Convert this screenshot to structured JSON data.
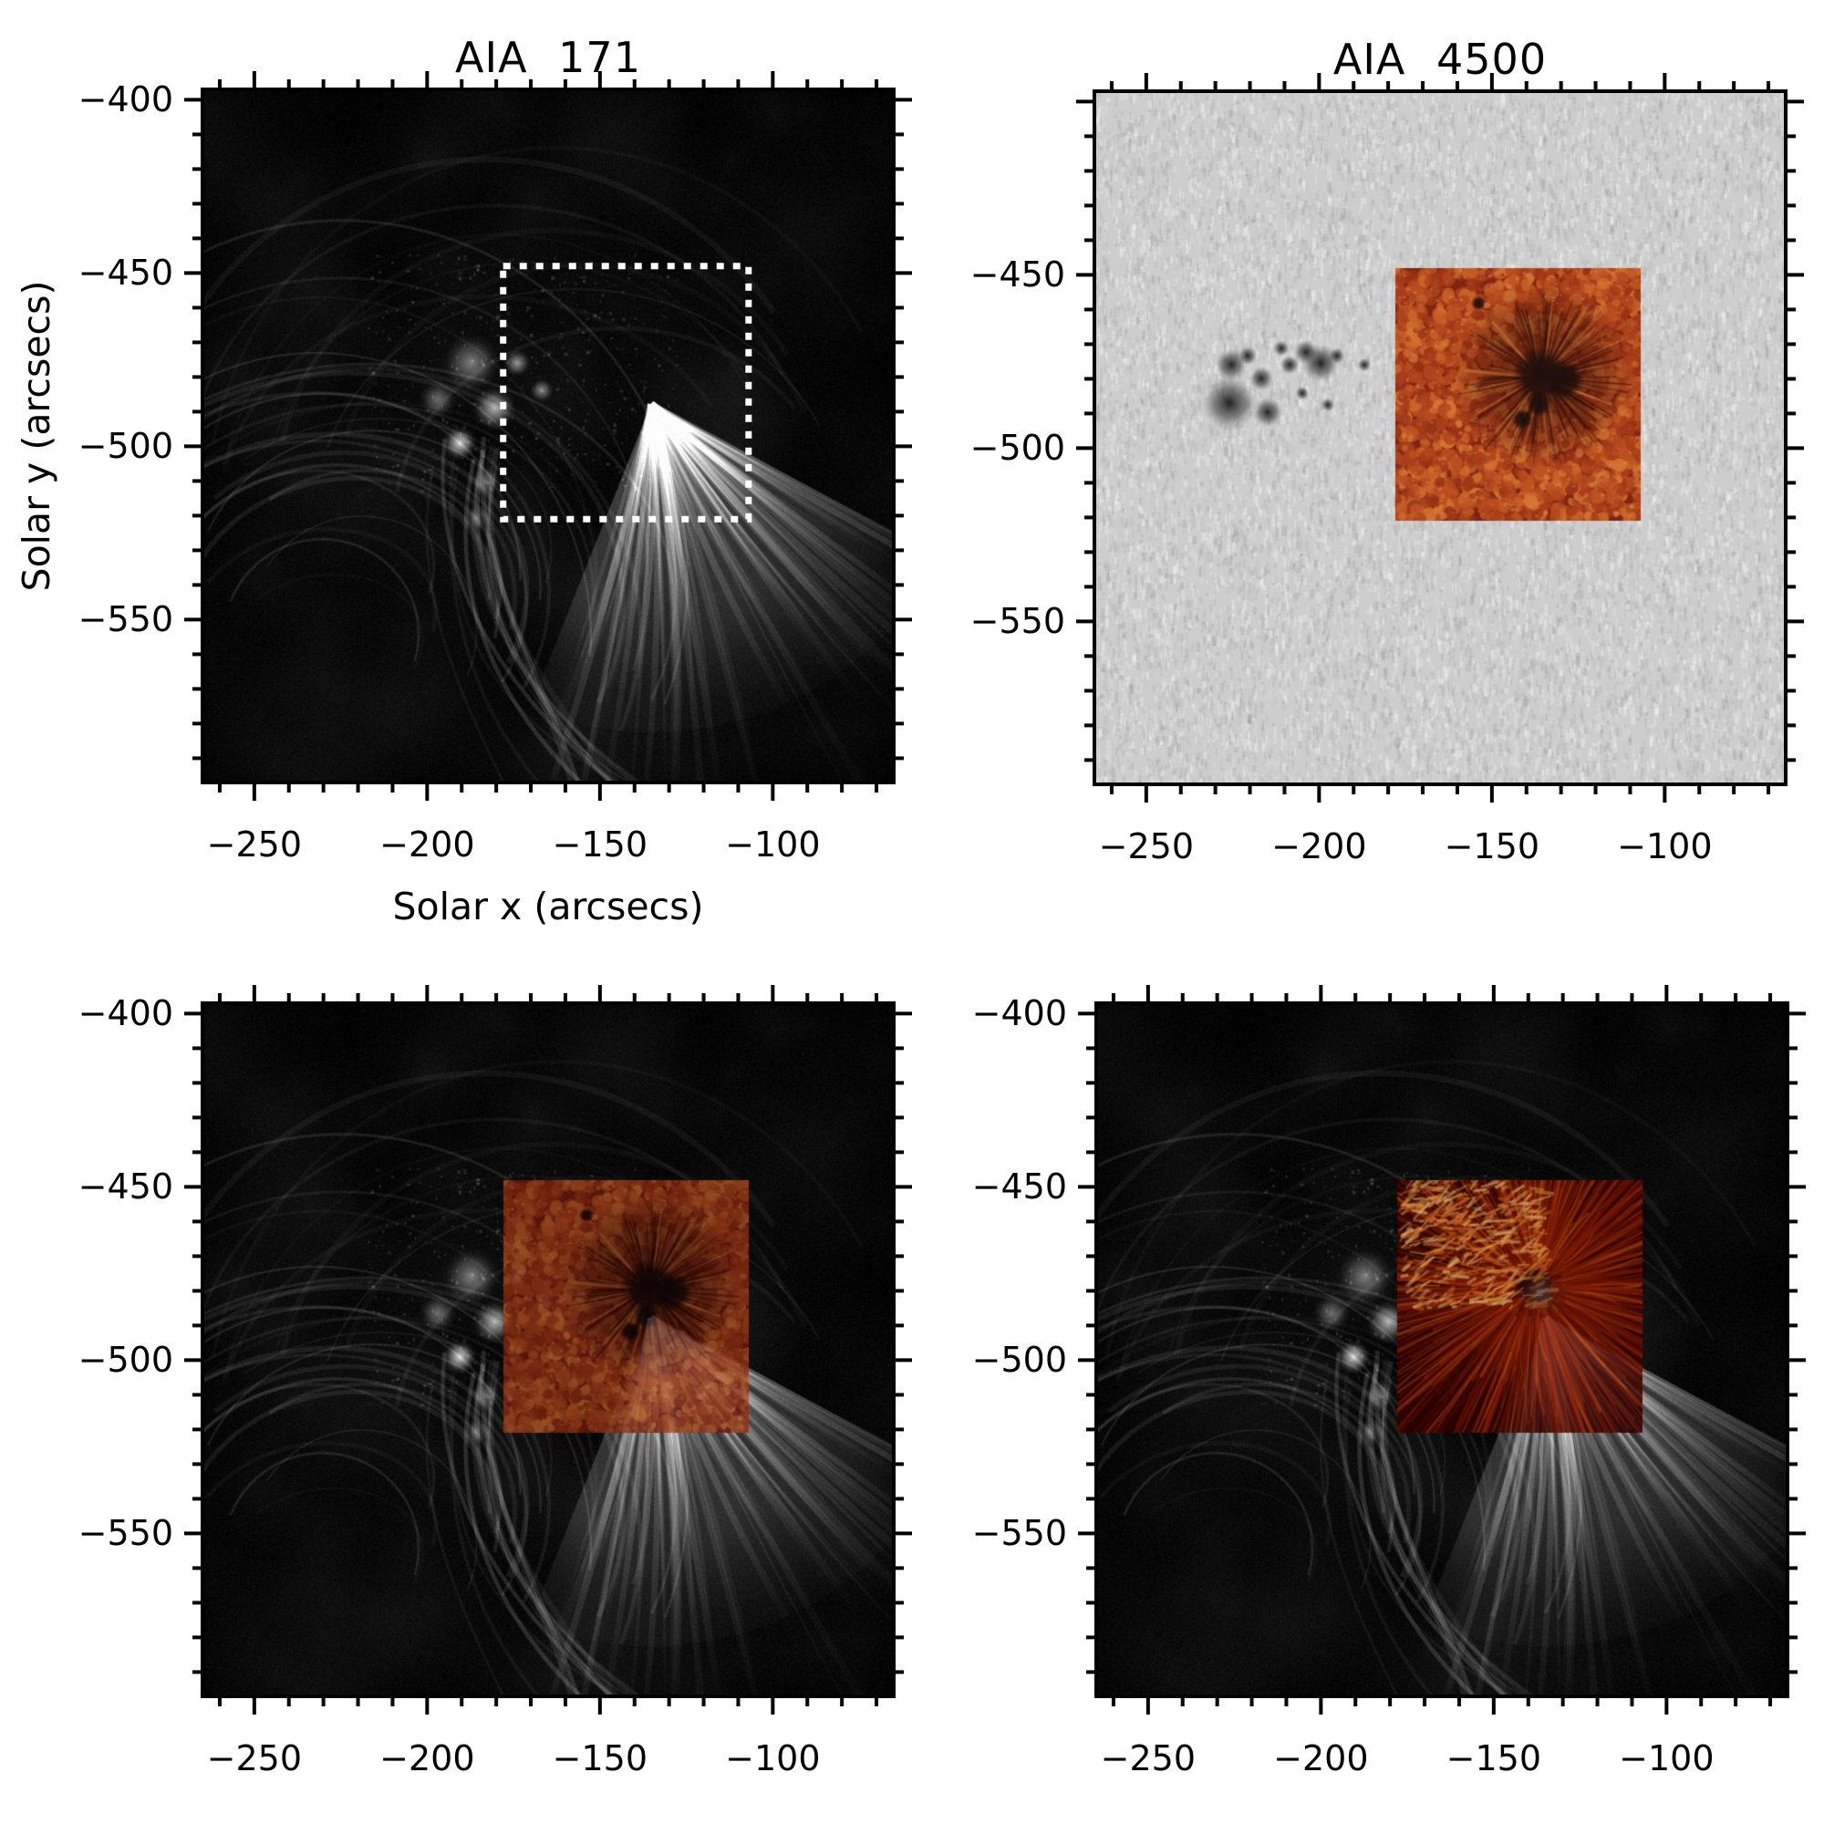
{
  "figure": {
    "background": "#ffffff",
    "text_color": "#000000",
    "frame_color": "#000000",
    "dotted_box_color": "#ffffff"
  },
  "axis": {
    "x_title": "Solar x (arcsecs)",
    "y_title": "Solar y (arcsecs)",
    "x_range": [
      -265,
      -65
    ],
    "y_range": [
      -597,
      -397
    ],
    "x_major_ticks": [
      -250,
      -200,
      -150,
      -100
    ],
    "y_major_ticks": [
      -400,
      -450,
      -500,
      -550
    ],
    "minor_tick_step": 10,
    "x_tick_labels": [
      "−250",
      "−200",
      "−150",
      "−100"
    ]
  },
  "inset_region": {
    "x": [
      -178,
      -107
    ],
    "y": [
      -521,
      -448
    ]
  },
  "panels": [
    {
      "id": "aia-171",
      "title": "AIA 171",
      "y_tick_labels": [
        "−400",
        "−450",
        "−500",
        "−550"
      ],
      "show_axis_titles": true,
      "base_image": "aia171-euv-loops",
      "overlay": "dotted-box"
    },
    {
      "id": "aia-4500",
      "title": "AIA 4500",
      "y_tick_labels": [
        "−450",
        "−500",
        "−550"
      ],
      "show_axis_titles": false,
      "base_image": "aia4500-photosphere",
      "overlay": "granulation-inset-opaque"
    },
    {
      "id": "aia-171-granulation-overlay",
      "title": "",
      "y_tick_labels": [
        "−400",
        "−450",
        "−500",
        "−550"
      ],
      "show_axis_titles": false,
      "base_image": "aia171-euv-loops",
      "overlay": "granulation-inset-transparent"
    },
    {
      "id": "aia-171-fibril-overlay",
      "title": "",
      "y_tick_labels": [
        "−400",
        "−450",
        "−500",
        "−550"
      ],
      "show_axis_titles": false,
      "base_image": "aia171-euv-loops",
      "overlay": "fibril-inset-transparent"
    }
  ],
  "colors": {
    "aia_background": "#000000",
    "aia_loops": "#cfcfcf",
    "photosphere_gray": "#cdcdcd",
    "pore_dark": "#1a1a1a",
    "granulation_base": "#701c0e",
    "granulation_bright": "#cf6d2a",
    "granulation_highlight": "#f5be64",
    "umbra": "#050508",
    "fibril_base": "#260202",
    "fibril_bright": "#ffd282"
  },
  "chart_data": [
    {
      "type": "image",
      "title": "AIA 171",
      "xlabel": "Solar x (arcsecs)",
      "ylabel": "Solar y (arcsecs)",
      "xlim": [
        -265,
        -65
      ],
      "ylim": [
        -597,
        -397
      ],
      "xticks": [
        -250,
        -200,
        -150,
        -100
      ],
      "yticks": [
        -550,
        -500,
        -450,
        -400
      ],
      "description": "Grayscale EUV image of coronal loops and a bright fan of rays from an active region",
      "annotation": {
        "kind": "white-dotted-box",
        "x": [
          -178,
          -107
        ],
        "y": [
          -521,
          -448
        ]
      }
    },
    {
      "type": "image",
      "title": "AIA 4500",
      "xlabel": "",
      "ylabel": "",
      "xlim": [
        -265,
        -65
      ],
      "ylim": [
        -597,
        -397
      ],
      "xticks": [
        -250,
        -200,
        -150,
        -100
      ],
      "yticks": [
        -550,
        -500,
        -450
      ],
      "description": "Light-gray white-light photosphere with a cluster of dark pores near x -233 to -191, y -492 to -466, and an opaque orange granulation/sunspot inset",
      "annotation": {
        "kind": "orange-granulation-inset",
        "x": [
          -178,
          -107
        ],
        "y": [
          -521,
          -448
        ]
      }
    },
    {
      "type": "image",
      "title": "",
      "xlabel": "",
      "ylabel": "",
      "xlim": [
        -265,
        -65
      ],
      "ylim": [
        -597,
        -397
      ],
      "xticks": [
        -250,
        -200,
        -150,
        -100
      ],
      "yticks": [
        -550,
        -500,
        -450,
        -400
      ],
      "description": "Same AIA 171 image with a semi-transparent dark-red granulation inset overlaid on the boxed region",
      "annotation": {
        "kind": "granulation-inset-semitransparent",
        "x": [
          -178,
          -107
        ],
        "y": [
          -521,
          -448
        ]
      }
    },
    {
      "type": "image",
      "title": "",
      "xlabel": "",
      "ylabel": "",
      "xlim": [
        -265,
        -65
      ],
      "ylim": [
        -597,
        -397
      ],
      "xticks": [
        -250,
        -200,
        -150,
        -100
      ],
      "yticks": [
        -550,
        -500,
        -450,
        -400
      ],
      "description": "Same AIA 171 image with a semi-transparent red chromospheric-fibril inset radiating from the sunspot, with bright orange plage patches",
      "annotation": {
        "kind": "fibril-inset-semitransparent",
        "x": [
          -178,
          -107
        ],
        "y": [
          -521,
          -448
        ]
      }
    }
  ]
}
